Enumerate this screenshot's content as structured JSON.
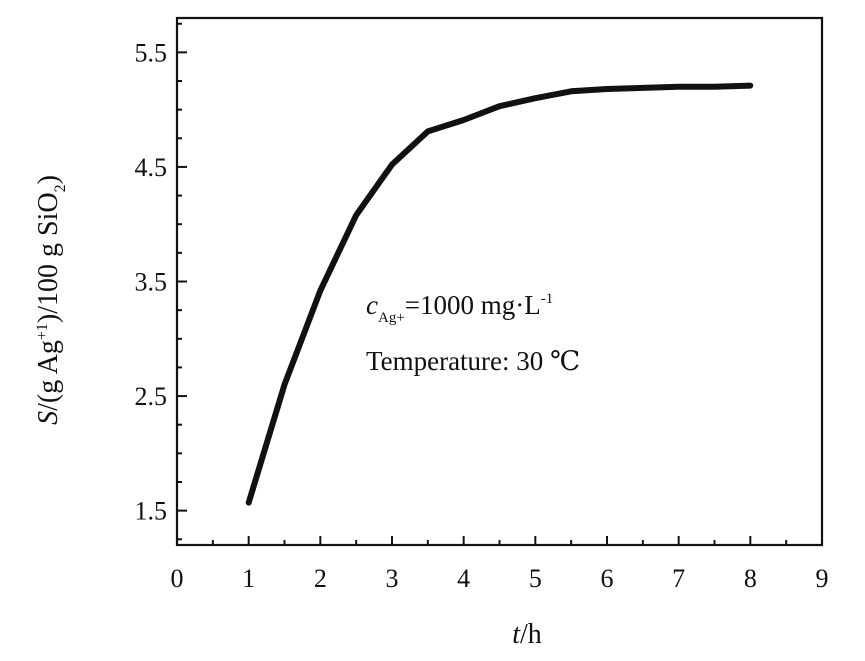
{
  "chart_data": {
    "type": "line",
    "xlabel": {
      "italic": "t",
      "rest": "/h"
    },
    "ylabel": {
      "italic": "S",
      "parts": [
        "/(g Ag",
        "+1",
        ")/100 g SiO",
        "2",
        ")"
      ]
    },
    "xlim": [
      0,
      9
    ],
    "ylim": [
      1.2,
      5.8
    ],
    "x_ticks": [
      0,
      1,
      2,
      3,
      4,
      5,
      6,
      7,
      8,
      9
    ],
    "x_tick_labels": [
      "0",
      "1",
      "2",
      "3",
      "4",
      "5",
      "6",
      "7",
      "8",
      "9"
    ],
    "y_ticks": [
      1.5,
      2.5,
      3.5,
      4.5,
      5.5
    ],
    "y_tick_labels": [
      "1.5",
      "2.5",
      "3.5",
      "4.5",
      "5.5"
    ],
    "series": [
      {
        "x": [
          1.0,
          1.5,
          2.0,
          2.5,
          3.0,
          3.5,
          4.0,
          4.5,
          5.0,
          5.5,
          6.0,
          6.5,
          7.0,
          7.5,
          8.0
        ],
        "y": [
          1.57,
          2.6,
          3.42,
          4.08,
          4.52,
          4.81,
          4.91,
          5.03,
          5.1,
          5.16,
          5.18,
          5.19,
          5.2,
          5.2,
          5.21
        ]
      }
    ],
    "annotations": [
      {
        "line1_c": "c",
        "line1_sub": "Ag+",
        "line1_rest": "=1000 mg·L",
        "line1_sup": "-1"
      },
      {
        "text": "Temperature: 30 ℃"
      }
    ],
    "grid": false,
    "legend": "none"
  }
}
